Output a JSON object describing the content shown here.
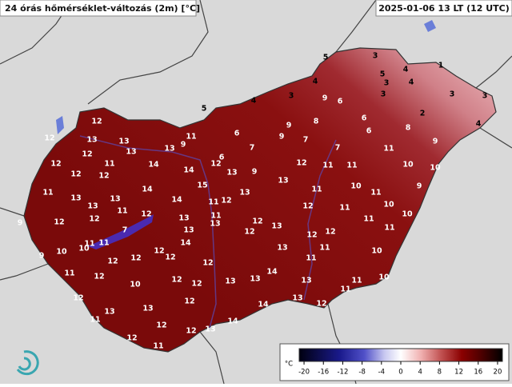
{
  "header": {
    "title": "24 órás hőmérséklet-változás (2m) [°C]",
    "time": "2025-01-06 13 LT (12 UTC)"
  },
  "stations": {
    "values": [
      5,
      3,
      1,
      5,
      4,
      4,
      3,
      4,
      3,
      3,
      4,
      3,
      9,
      6,
      3,
      5,
      2,
      6,
      9,
      8,
      12,
      4,
      8,
      6,
      6,
      9,
      7,
      11,
      12,
      13,
      13,
      9,
      9,
      13,
      7,
      7,
      11,
      12,
      13,
      6,
      12,
      12,
      11,
      14,
      12,
      11,
      11,
      10,
      10,
      12,
      12,
      14,
      13,
      9,
      13,
      15,
      14,
      11,
      13,
      13,
      14,
      12,
      13,
      11,
      10,
      11,
      9,
      13,
      11,
      12,
      11,
      12,
      11,
      10,
      12,
      12,
      13,
      11,
      12,
      13,
      11,
      10,
      9,
      7,
      13,
      13,
      12,
      12,
      12,
      11,
      11,
      11,
      12,
      14,
      13,
      11,
      10,
      10,
      9,
      12,
      12,
      12,
      12,
      11,
      10,
      11,
      12,
      14,
      10,
      12,
      12,
      13,
      13,
      13,
      11,
      10,
      12,
      12,
      14,
      13,
      11,
      13,
      13,
      11,
      12,
      14,
      12,
      12,
      13,
      12,
      11
    ]
  },
  "colorbar": {
    "unit": "°C",
    "clim": [
      -21,
      21
    ],
    "ticks": [
      -20,
      -16,
      -12,
      -8,
      -4,
      0,
      4,
      8,
      12,
      16,
      20
    ]
  }
}
